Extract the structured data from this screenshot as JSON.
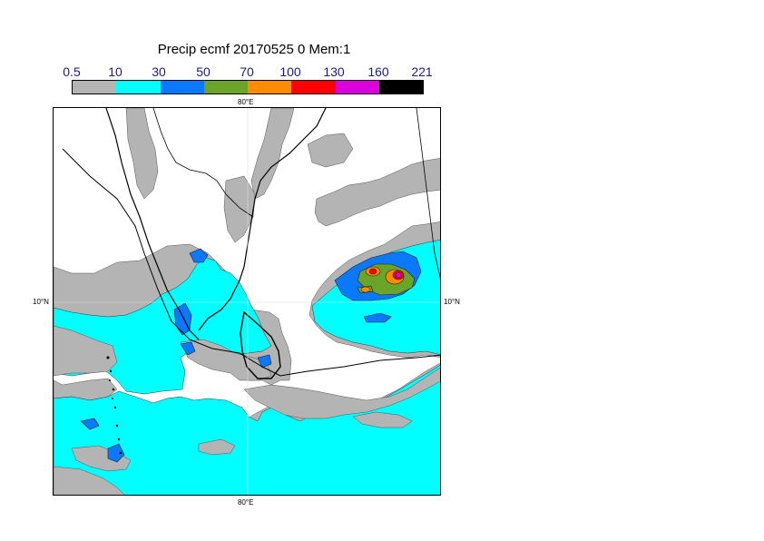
{
  "title": "Precip ecmf 20170525 0 Mem:1",
  "colorbar": {
    "ticks": [
      "0.5",
      "10",
      "30",
      "50",
      "70",
      "100",
      "130",
      "160",
      "221"
    ],
    "colors": [
      "#b4b4b4",
      "#00ffff",
      "#0a78ff",
      "#6aa52a",
      "#ff8c00",
      "#ff0000",
      "#dc00dc",
      "#000000"
    ]
  },
  "axes": {
    "lon_top": "80°E",
    "lon_bottom": "80°E",
    "lat_left": "10°N",
    "lat_right": "10°N"
  }
}
